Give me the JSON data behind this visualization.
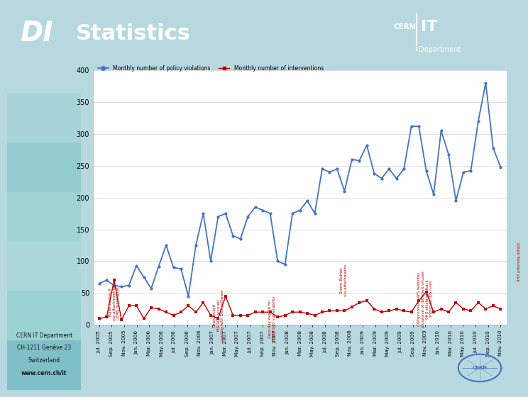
{
  "title": "Statistics",
  "ylim": [
    0,
    400
  ],
  "yticks": [
    0,
    50,
    100,
    150,
    200,
    250,
    300,
    350,
    400
  ],
  "x_labels": [
    "Jul. 2005",
    "Sep. 2005",
    "Nov. 2005",
    "Jan. 2006",
    "Mar. 2006",
    "May. 2006",
    "Jul. 2006",
    "Sep. 2006",
    "Nov. 2006",
    "Jan. 2007",
    "Mar. 2007",
    "May. 2007",
    "Jul. 2007",
    "Sep. 2007",
    "Nov. 2007",
    "Jan. 2008",
    "Mar. 2008",
    "May. 2008",
    "Jul. 2008",
    "Sep. 2008",
    "Nov. 2008",
    "Jan. 2009",
    "Mar. 2009",
    "May. 2009",
    "Jul. 2009",
    "Sep. 2009",
    "Nov. 2009",
    "Jan. 2010",
    "Mar. 2010",
    "May. 2010",
    "Jul. 2010",
    "Sep. 2010",
    "Nov. 2010"
  ],
  "blue_values": [
    65,
    70,
    62,
    60,
    62,
    93,
    75,
    57,
    92,
    125,
    90,
    88,
    45,
    125,
    175,
    100,
    170,
    175,
    140,
    135,
    170,
    185,
    180,
    175,
    100,
    95,
    175,
    180,
    195,
    175,
    245,
    240,
    245,
    210,
    260,
    258,
    282,
    238,
    230,
    245,
    230,
    245,
    312,
    312,
    242,
    205,
    305,
    268,
    195,
    240,
    242,
    320,
    380,
    278,
    248
  ],
  "red_values": [
    10,
    12,
    70,
    8,
    30,
    30,
    10,
    27,
    25,
    20,
    15,
    20,
    30,
    20,
    35,
    15,
    10,
    45,
    15,
    15,
    15,
    20,
    20,
    20,
    12,
    15,
    20,
    20,
    18,
    15,
    20,
    22,
    22,
    22,
    28,
    35,
    38,
    25,
    20,
    22,
    25,
    22,
    20,
    38,
    52,
    20,
    25,
    20,
    35,
    25,
    22,
    35,
    25,
    30,
    25
  ],
  "annotations": [
    {
      "xi": 1.2,
      "yi": 62,
      "text": "Trojan.Lodser.A\nvia attachment to\nCERN mailing list"
    },
    {
      "xi": 9.5,
      "yi": 55,
      "text": "Unprotected\nMS-SQL account\ncoming with DCS software"
    },
    {
      "xi": 13.8,
      "yi": 45,
      "text": "Zero-day exploit for\nMS06-040 vulnerability"
    },
    {
      "xi": 19.5,
      "yi": 95,
      "text": "Storm Botnet\nvia attachments"
    },
    {
      "xi": 26.0,
      "yi": 85,
      "text": "Compromised AFS websites\npluswave of different viruses\n9HX phishing attack\nImproved IDS rules"
    },
    {
      "xi": 33.5,
      "yi": 130,
      "text": "9HX phishing attack"
    }
  ],
  "legend_blue_label": "Monthly number of policy violations",
  "legend_red_label": "Monthly number of interventions",
  "blue_color": "#4472c4",
  "red_color": "#c00000",
  "header_color": "#4472c4",
  "page_bg": "#b8d8e0",
  "chart_bg": "#ffffff",
  "footer_text": "CERN IT Department\nCH-1211 Genève 23\nSwitzerland\nwww.cern.ch/it"
}
